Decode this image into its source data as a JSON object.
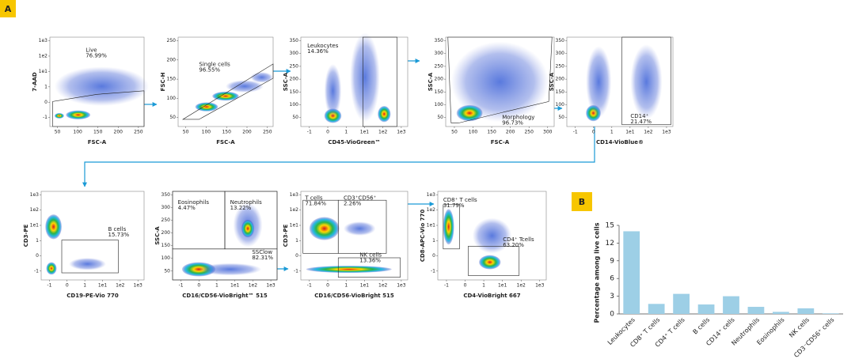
{
  "panel_labels": [
    "A",
    "B"
  ],
  "flow_plots": [
    {
      "x_label": "FSC-A",
      "y_label": "7-AAD",
      "x_tick_labels": [
        "50",
        "100",
        "150",
        "200",
        "250"
      ],
      "y_tick_labels": [
        "-1",
        "0",
        "1",
        "1e1",
        "1e2",
        "1e3"
      ],
      "gates": [
        {
          "label": "Live",
          "value": "76.99%"
        }
      ]
    },
    {
      "x_label": "FSC-A",
      "y_label": "FSC-H",
      "x_tick_labels": [
        "50",
        "100",
        "150",
        "200",
        "250"
      ],
      "y_tick_labels": [
        "50",
        "100",
        "150",
        "200",
        "250"
      ],
      "gates": [
        {
          "label": "Single cells",
          "value": "96.55%"
        }
      ]
    },
    {
      "x_label": "CD45-VioGreen™",
      "y_label": "SSC-A",
      "x_tick_labels": [
        "-1",
        "0",
        "1",
        "1e1",
        "1e2",
        "1e3"
      ],
      "y_tick_labels": [
        "50",
        "100",
        "150",
        "200",
        "250",
        "300",
        "350"
      ],
      "gates": [
        {
          "label": "Leukocytes",
          "value": "14.36%"
        }
      ]
    },
    {
      "x_label": "FSC-A",
      "y_label": "SSC-A",
      "x_tick_labels": [
        "50",
        "100",
        "150",
        "200",
        "250",
        "300"
      ],
      "y_tick_labels": [
        "50",
        "100",
        "150",
        "200",
        "250",
        "300",
        "350"
      ],
      "gates": [
        {
          "label": "Morphology",
          "value": "96.73%"
        }
      ]
    },
    {
      "x_label": "CD14-VioBlue®",
      "y_label": "SSC-A",
      "x_tick_labels": [
        "-1",
        "0",
        "1",
        "1e1",
        "1e2",
        "1e3"
      ],
      "y_tick_labels": [
        "50",
        "100",
        "150",
        "200",
        "250",
        "300",
        "350"
      ],
      "gates": [
        {
          "label": "CD14⁺",
          "value": "21.47%"
        }
      ]
    },
    {
      "x_label": "CD19-PE-Vio 770",
      "y_label": "CD3-PE",
      "x_tick_labels": [
        "-1",
        "0",
        "1",
        "1e1",
        "1e2",
        "1e3"
      ],
      "y_tick_labels": [
        "-1",
        "0",
        "1",
        "1e1",
        "1e2",
        "1e3"
      ],
      "gates": [
        {
          "label": "B cells",
          "value": "15.73%"
        }
      ]
    },
    {
      "x_label": "CD16/CD56-VioBright™ 515",
      "y_label": "SSC-A",
      "x_tick_labels": [
        "-1",
        "0",
        "1",
        "1e1",
        "1e2",
        "1e3"
      ],
      "y_tick_labels": [
        "50",
        "100",
        "150",
        "200",
        "250",
        "300",
        "350"
      ],
      "gates": [
        {
          "label": "Eosinophils",
          "value": "4.47%"
        },
        {
          "label": "Neutrophils",
          "value": "13.22%"
        },
        {
          "label": "SSClow",
          "value": "82.31%"
        }
      ]
    },
    {
      "x_label": "CD16/CD56-VioBright 515",
      "y_label": "CD3-PE",
      "x_tick_labels": [
        "-1",
        "0",
        "1",
        "1e1",
        "1e2",
        "1e3"
      ],
      "y_tick_labels": [
        "-1",
        "0",
        "1",
        "1e1",
        "1e2",
        "1e3"
      ],
      "gates": [
        {
          "label": "T cells",
          "value": "71.84%"
        },
        {
          "label": "CD3⁺CD56⁺",
          "value": "2.26%"
        },
        {
          "label": "NK cells",
          "value": "13.36%"
        }
      ]
    },
    {
      "x_label": "CD4-VioBright 667",
      "y_label": "CD8-APC-Vio 770",
      "x_tick_labels": [
        "-1",
        "0",
        "1",
        "1e1",
        "1e2",
        "1e3"
      ],
      "y_tick_labels": [
        "-1",
        "0",
        "1",
        "1e1",
        "1e2",
        "1e3"
      ],
      "gates": [
        {
          "label": "CD8⁺ T cells",
          "value": "31.79%"
        },
        {
          "label": "CD4⁺ Tcells",
          "value": "63.20%"
        }
      ]
    }
  ],
  "chart_data": {
    "type": "bar",
    "y_label": "Percentage among live cells",
    "categories": [
      "Leukocytes",
      "CD8⁺ T cells",
      "CD4⁺ T cells",
      "B cells",
      "CD14⁺ cells",
      "Neutrophils",
      "Eosinophils",
      "NK cells",
      "CD3⁻CD56⁺ cells"
    ],
    "values": [
      14.0,
      1.7,
      3.4,
      1.6,
      3.0,
      1.2,
      0.35,
      0.95,
      0.1
    ],
    "color": "#9dcfe6",
    "ylim": [
      0,
      15
    ],
    "yticks": [
      0,
      3,
      6,
      9,
      12,
      15
    ]
  }
}
